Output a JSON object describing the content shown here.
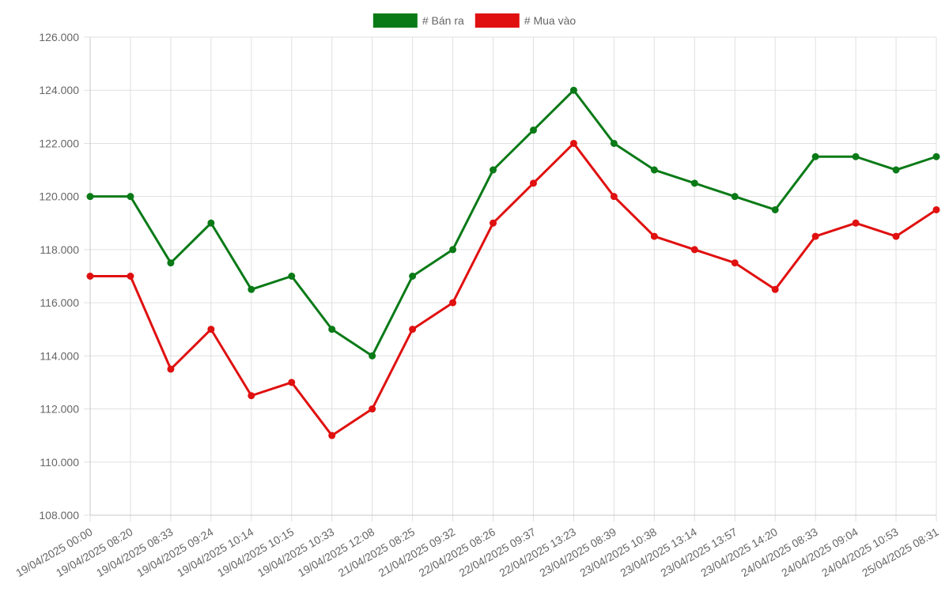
{
  "chart_data": {
    "type": "line",
    "title": "",
    "xlabel": "",
    "ylabel": "",
    "ylim": [
      108000,
      126000
    ],
    "y_tick_step": 2000,
    "y_tick_labels": [
      "108.000",
      "110.000",
      "112.000",
      "114.000",
      "116.000",
      "118.000",
      "120.000",
      "122.000",
      "124.000",
      "126.000"
    ],
    "grid": true,
    "legend_position": "top-center",
    "categories": [
      "19/04/2025 00:00",
      "19/04/2025 08:20",
      "19/04/2025 08:33",
      "19/04/2025 09:24",
      "19/04/2025 10:14",
      "19/04/2025 10:15",
      "19/04/2025 10:33",
      "19/04/2025 12:08",
      "21/04/2025 08:25",
      "21/04/2025 09:32",
      "22/04/2025 08:26",
      "22/04/2025 09:37",
      "22/04/2025 13:23",
      "23/04/2025 08:39",
      "23/04/2025 10:38",
      "23/04/2025 13:14",
      "23/04/2025 13:57",
      "23/04/2025 14:20",
      "24/04/2025 08:33",
      "24/04/2025 09:04",
      "24/04/2025 10:53",
      "25/04/2025 08:31"
    ],
    "series": [
      {
        "name": "# Bán ra",
        "color": "#0a7a17",
        "values": [
          120000,
          120000,
          117500,
          119000,
          116500,
          117000,
          115000,
          114000,
          117000,
          118000,
          121000,
          122500,
          124000,
          122000,
          121000,
          120500,
          120000,
          119500,
          121500,
          121500,
          121000,
          121500
        ]
      },
      {
        "name": "# Mua vào",
        "color": "#e01010",
        "values": [
          117000,
          117000,
          113500,
          115000,
          112500,
          113000,
          111000,
          112000,
          115000,
          116000,
          119000,
          120500,
          122000,
          120000,
          118500,
          118000,
          117500,
          116500,
          118500,
          119000,
          118500,
          119500
        ]
      }
    ]
  }
}
